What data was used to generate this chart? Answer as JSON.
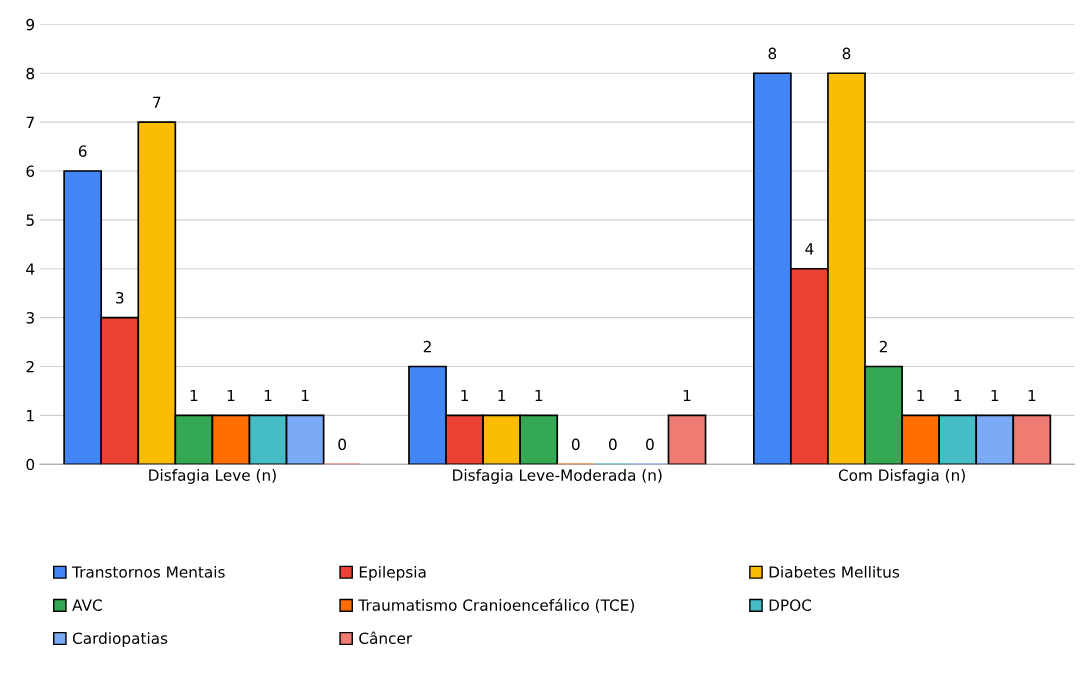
{
  "chart_data": {
    "type": "bar",
    "categories": [
      "Disfagia Leve (n)",
      "Disfagia Leve-Moderada (n)",
      "Com Disfagia (n)"
    ],
    "series": [
      {
        "name": "Transtornos Mentais",
        "color": "#4285f4",
        "values": [
          6,
          2,
          8
        ]
      },
      {
        "name": "Epilepsia",
        "color": "#ea4335",
        "values": [
          3,
          1,
          4
        ]
      },
      {
        "name": "Diabetes Mellitus",
        "color": "#fbbc04",
        "values": [
          7,
          1,
          8
        ]
      },
      {
        "name": "AVC",
        "color": "#34a853",
        "values": [
          1,
          1,
          2
        ]
      },
      {
        "name": "Traumatismo Cranioencefálico (TCE)",
        "color": "#ff6d01",
        "values": [
          1,
          0,
          1
        ]
      },
      {
        "name": "DPOC",
        "color": "#46bdc6",
        "values": [
          1,
          0,
          1
        ]
      },
      {
        "name": "Cardiopatias",
        "color": "#7baaf7",
        "values": [
          1,
          0,
          1
        ]
      },
      {
        "name": "Câncer",
        "color": "#f07b72",
        "values": [
          0,
          1,
          1
        ]
      }
    ],
    "ylim": [
      0,
      9
    ],
    "yticks": [
      0,
      1,
      2,
      3,
      4,
      5,
      6,
      7,
      8,
      9
    ],
    "grid": "y",
    "legend": "bottom",
    "data_labels": true
  }
}
